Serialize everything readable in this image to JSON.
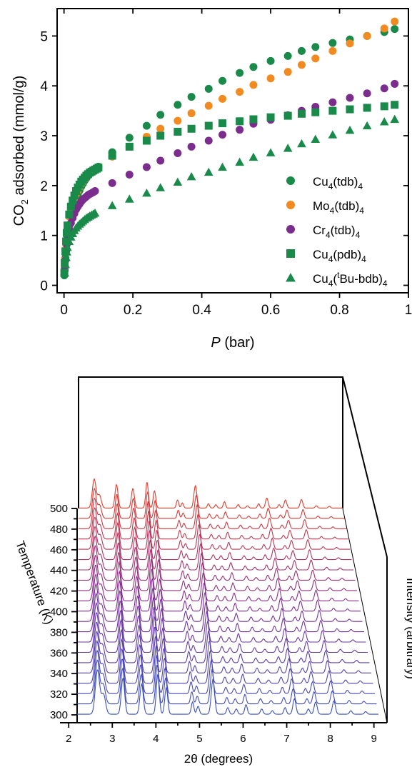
{
  "chart_data": [
    {
      "type": "scatter",
      "xlabel": "P (bar)",
      "ylabel": "CO2 adsorbed (mmol/g)",
      "xlim": [
        -0.02,
        1.0
      ],
      "ylim": [
        -0.15,
        5.55
      ],
      "xticks": [
        0,
        0.2,
        0.4,
        0.6,
        0.8,
        1
      ],
      "xtick_labels": [
        "0",
        "0.2",
        "0.4",
        "0.6",
        "0.8",
        "1"
      ],
      "yticks": [
        0,
        1,
        2,
        3,
        4,
        5
      ],
      "ytick_labels": [
        "0",
        "1",
        "2",
        "3",
        "4",
        "5"
      ],
      "legend_position": "bottom-right",
      "series": [
        {
          "name": "Cu4(tdb)4",
          "color": "#1a8a4a",
          "marker": "circle",
          "x": [
            0.001,
            0.002,
            0.004,
            0.006,
            0.008,
            0.01,
            0.015,
            0.02,
            0.025,
            0.03,
            0.035,
            0.04,
            0.045,
            0.05,
            0.055,
            0.06,
            0.065,
            0.07,
            0.075,
            0.08,
            0.085,
            0.09,
            0.095,
            0.1,
            0.14,
            0.19,
            0.24,
            0.28,
            0.33,
            0.37,
            0.42,
            0.46,
            0.51,
            0.55,
            0.6,
            0.65,
            0.69,
            0.73,
            0.78,
            0.83,
            0.88,
            0.93,
            0.96
          ],
          "y": [
            0.2,
            0.35,
            0.55,
            0.7,
            0.85,
            1.0,
            1.2,
            1.38,
            1.5,
            1.62,
            1.72,
            1.82,
            1.9,
            1.98,
            2.04,
            2.1,
            2.15,
            2.2,
            2.24,
            2.28,
            2.3,
            2.33,
            2.35,
            2.38,
            2.67,
            2.96,
            3.2,
            3.42,
            3.62,
            3.78,
            3.94,
            4.1,
            4.26,
            4.38,
            4.5,
            4.6,
            4.7,
            4.78,
            4.86,
            4.93,
            5.0,
            5.08,
            5.14
          ]
        },
        {
          "name": "Mo4(tdb)4",
          "color": "#f28a22",
          "marker": "circle",
          "x": [
            0.001,
            0.002,
            0.004,
            0.006,
            0.008,
            0.01,
            0.015,
            0.02,
            0.025,
            0.03,
            0.035,
            0.04,
            0.045,
            0.05,
            0.055,
            0.06,
            0.065,
            0.07,
            0.075,
            0.08,
            0.085,
            0.09,
            0.095,
            0.1,
            0.14,
            0.19,
            0.24,
            0.28,
            0.33,
            0.37,
            0.42,
            0.46,
            0.51,
            0.55,
            0.6,
            0.65,
            0.69,
            0.73,
            0.78,
            0.83,
            0.88,
            0.93,
            0.96
          ],
          "y": [
            0.3,
            0.5,
            0.72,
            0.9,
            1.05,
            1.18,
            1.38,
            1.52,
            1.64,
            1.74,
            1.83,
            1.9,
            1.97,
            2.03,
            2.08,
            2.13,
            2.17,
            2.21,
            2.24,
            2.27,
            2.3,
            2.32,
            2.34,
            2.36,
            2.58,
            2.78,
            2.98,
            3.14,
            3.3,
            3.45,
            3.6,
            3.74,
            3.88,
            4.02,
            4.15,
            4.28,
            4.42,
            4.55,
            4.7,
            4.85,
            5.0,
            5.15,
            5.29
          ]
        },
        {
          "name": "Cr4(tdb)4",
          "color": "#7b2d8e",
          "marker": "circle",
          "x": [
            0.002,
            0.004,
            0.006,
            0.008,
            0.01,
            0.015,
            0.02,
            0.025,
            0.03,
            0.035,
            0.04,
            0.045,
            0.05,
            0.055,
            0.06,
            0.065,
            0.07,
            0.075,
            0.08,
            0.085,
            0.09,
            0.14,
            0.19,
            0.24,
            0.28,
            0.33,
            0.37,
            0.42,
            0.46,
            0.51,
            0.55,
            0.6,
            0.65,
            0.69,
            0.73,
            0.78,
            0.83,
            0.88,
            0.93,
            0.96
          ],
          "y": [
            0.3,
            0.5,
            0.68,
            0.82,
            0.95,
            1.12,
            1.25,
            1.35,
            1.44,
            1.52,
            1.58,
            1.63,
            1.68,
            1.72,
            1.75,
            1.78,
            1.81,
            1.83,
            1.85,
            1.87,
            1.89,
            2.05,
            2.22,
            2.37,
            2.5,
            2.65,
            2.78,
            2.9,
            3.02,
            3.12,
            3.24,
            3.32,
            3.41,
            3.5,
            3.58,
            3.67,
            3.76,
            3.85,
            3.95,
            4.04
          ]
        },
        {
          "name": "Cu4(pdb)4",
          "color": "#1a8a4a",
          "marker": "square",
          "x": [
            0.001,
            0.002,
            0.004,
            0.006,
            0.008,
            0.01,
            0.015,
            0.02,
            0.025,
            0.03,
            0.035,
            0.04,
            0.045,
            0.05,
            0.055,
            0.06,
            0.065,
            0.07,
            0.075,
            0.08,
            0.085,
            0.09,
            0.095,
            0.1,
            0.14,
            0.19,
            0.24,
            0.28,
            0.33,
            0.37,
            0.42,
            0.46,
            0.51,
            0.55,
            0.6,
            0.65,
            0.69,
            0.73,
            0.78,
            0.83,
            0.88,
            0.93,
            0.96
          ],
          "y": [
            0.25,
            0.45,
            0.68,
            0.88,
            1.05,
            1.2,
            1.42,
            1.58,
            1.7,
            1.8,
            1.89,
            1.96,
            2.02,
            2.08,
            2.12,
            2.16,
            2.2,
            2.23,
            2.26,
            2.28,
            2.3,
            2.32,
            2.34,
            2.36,
            2.6,
            2.78,
            2.9,
            3.0,
            3.08,
            3.14,
            3.2,
            3.25,
            3.29,
            3.33,
            3.37,
            3.4,
            3.44,
            3.47,
            3.5,
            3.53,
            3.56,
            3.59,
            3.62
          ]
        },
        {
          "name": "Cu4(tBu-bdb)4",
          "color": "#1a8a4a",
          "marker": "triangle",
          "x": [
            0.002,
            0.004,
            0.006,
            0.008,
            0.01,
            0.015,
            0.02,
            0.025,
            0.03,
            0.035,
            0.04,
            0.045,
            0.05,
            0.055,
            0.06,
            0.065,
            0.07,
            0.075,
            0.08,
            0.085,
            0.09,
            0.14,
            0.19,
            0.24,
            0.28,
            0.33,
            0.37,
            0.42,
            0.46,
            0.51,
            0.55,
            0.6,
            0.65,
            0.69,
            0.73,
            0.78,
            0.83,
            0.88,
            0.93,
            0.96
          ],
          "y": [
            0.25,
            0.42,
            0.56,
            0.67,
            0.76,
            0.88,
            0.97,
            1.04,
            1.1,
            1.15,
            1.19,
            1.23,
            1.26,
            1.29,
            1.32,
            1.35,
            1.37,
            1.39,
            1.41,
            1.43,
            1.45,
            1.6,
            1.73,
            1.85,
            1.96,
            2.07,
            2.18,
            2.27,
            2.37,
            2.47,
            2.57,
            2.66,
            2.75,
            2.84,
            2.93,
            3.02,
            3.11,
            3.2,
            3.28,
            3.33
          ]
        }
      ],
      "legend": {
        "entries": [
          {
            "base": "Cu",
            "sub1": "4",
            "mid": "(tdb)",
            "sup": "",
            "after_sup": "",
            "sub2": "4",
            "color": "#1a8a4a",
            "marker": "circle"
          },
          {
            "base": "Mo",
            "sub1": "4",
            "mid": "(tdb)",
            "sup": "",
            "after_sup": "",
            "sub2": "4",
            "color": "#f28a22",
            "marker": "circle"
          },
          {
            "base": "Cr",
            "sub1": "4",
            "mid": "(tdb)",
            "sup": "",
            "after_sup": "",
            "sub2": "4",
            "color": "#7b2d8e",
            "marker": "circle"
          },
          {
            "base": "Cu",
            "sub1": "4",
            "mid": "(pdb)",
            "sup": "",
            "after_sup": "",
            "sub2": "4",
            "color": "#1a8a4a",
            "marker": "square"
          },
          {
            "base": "Cu",
            "sub1": "4",
            "mid": "(",
            "sup": "t",
            "after_sup": "Bu-bdb)",
            "sub2": "4",
            "color": "#1a8a4a",
            "marker": "triangle"
          }
        ]
      },
      "ylabel_parts": {
        "a": "CO",
        "sub": "2",
        "b": " adsorbed (mmol/g)"
      },
      "xlabel_parts": {
        "italic": "P",
        "rest": " (bar)"
      }
    },
    {
      "type": "line",
      "xlabel": "2θ (degrees)",
      "ylabel": "Temperature (K)",
      "zlabel": "Intensity (arbitrary)",
      "xlim": [
        1.8,
        9.3
      ],
      "xticks": [
        2,
        3,
        4,
        5,
        6,
        7,
        8,
        9
      ],
      "xtick_labels": [
        "2",
        "3",
        "4",
        "5",
        "6",
        "7",
        "8",
        "9"
      ],
      "temperatures": [
        300,
        310,
        320,
        330,
        340,
        350,
        360,
        370,
        380,
        390,
        400,
        410,
        420,
        430,
        440,
        450,
        460,
        470,
        480,
        490,
        500
      ],
      "temperature_tick_labels": [
        "300",
        "320",
        "340",
        "360",
        "380",
        "400",
        "420",
        "440",
        "460",
        "480",
        "500"
      ],
      "color_low": "#3a4fc0",
      "color_high": "#e23a2a",
      "peaks": [
        {
          "center": 2.48,
          "height": 1.0,
          "width": 0.05
        },
        {
          "center": 2.62,
          "height": 0.45,
          "width": 0.05
        },
        {
          "center": 3.08,
          "height": 0.82,
          "width": 0.04
        },
        {
          "center": 3.52,
          "height": 0.68,
          "width": 0.04
        },
        {
          "center": 3.9,
          "height": 0.9,
          "width": 0.035
        },
        {
          "center": 4.1,
          "height": 0.6,
          "width": 0.035
        },
        {
          "center": 4.72,
          "height": 0.28,
          "width": 0.03
        },
        {
          "center": 4.85,
          "height": 0.18,
          "width": 0.03
        },
        {
          "center": 5.2,
          "height": 0.78,
          "width": 0.04
        },
        {
          "center": 5.55,
          "height": 0.15,
          "width": 0.03
        },
        {
          "center": 5.75,
          "height": 0.12,
          "width": 0.03
        },
        {
          "center": 5.98,
          "height": 0.22,
          "width": 0.03
        },
        {
          "center": 6.35,
          "height": 0.12,
          "width": 0.03
        },
        {
          "center": 6.6,
          "height": 0.08,
          "width": 0.03
        },
        {
          "center": 6.9,
          "height": 0.15,
          "width": 0.03
        },
        {
          "center": 7.12,
          "height": 0.35,
          "width": 0.035
        },
        {
          "center": 7.45,
          "height": 0.12,
          "width": 0.03
        },
        {
          "center": 7.62,
          "height": 0.28,
          "width": 0.035
        },
        {
          "center": 8.05,
          "height": 0.3,
          "width": 0.035
        },
        {
          "center": 8.45,
          "height": 0.08,
          "width": 0.03
        },
        {
          "center": 8.8,
          "height": 0.06,
          "width": 0.03
        }
      ]
    }
  ]
}
